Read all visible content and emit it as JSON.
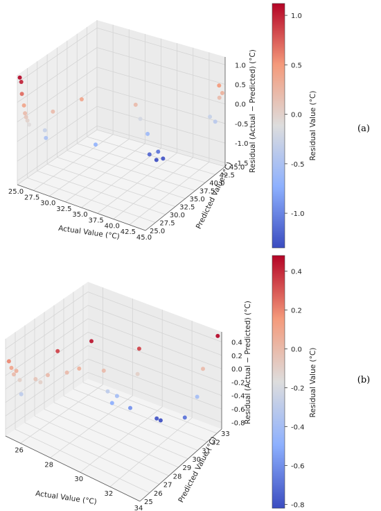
{
  "panels": [
    {
      "label": "(a)",
      "chart_data": {
        "type": "scatter",
        "projection": "3d",
        "xlabel": "Actual Value (°C)",
        "ylabel": "Predicted Value (°C)",
        "zlabel": "Residual (Actual − Predicted) (°C)",
        "x_ticks": [
          "25.0",
          "27.5",
          "30.0",
          "32.5",
          "35.0",
          "37.5",
          "40.0",
          "42.5",
          "45.0"
        ],
        "y_ticks": [
          "25.0",
          "27.5",
          "30.0",
          "32.5",
          "35.0",
          "37.5",
          "40.0",
          "42.5",
          "45.0"
        ],
        "z_ticks": [
          "-1.5",
          "-1.0",
          "-0.5",
          "0.0",
          "0.5",
          "1.0"
        ],
        "xlim": [
          25,
          45
        ],
        "ylim": [
          25,
          45
        ],
        "zlim": [
          -1.6,
          1.2
        ],
        "colorbar": {
          "label": "Residual Value (°C)",
          "colormap": "coolwarm",
          "range": [
            -1.35,
            1.12
          ],
          "ticks": [
            "1.0",
            "0.5",
            "0.0",
            "-0.5",
            "-1.0"
          ],
          "tick_values": [
            1.0,
            0.5,
            0.0,
            -0.5,
            -1.0
          ]
        },
        "points": [
          {
            "x": 25.2,
            "y": 25.3,
            "z": 1.12
          },
          {
            "x": 25.3,
            "y": 25.5,
            "z": 1.0
          },
          {
            "x": 25.4,
            "y": 25.5,
            "z": 0.7
          },
          {
            "x": 25.6,
            "y": 25.7,
            "z": 0.4
          },
          {
            "x": 25.7,
            "y": 25.8,
            "z": 0.2
          },
          {
            "x": 25.8,
            "y": 25.9,
            "z": 0.1
          },
          {
            "x": 25.9,
            "y": 26.1,
            "z": 0.0
          },
          {
            "x": 26.1,
            "y": 26.2,
            "z": -0.1
          },
          {
            "x": 27.5,
            "y": 27.9,
            "z": -0.3
          },
          {
            "x": 27.6,
            "y": 28.0,
            "z": -0.5
          },
          {
            "x": 28.5,
            "y": 28.3,
            "z": 0.2
          },
          {
            "x": 31.0,
            "y": 31.5,
            "z": 0.4
          },
          {
            "x": 32.8,
            "y": 32.1,
            "z": -0.7
          },
          {
            "x": 36.5,
            "y": 36.2,
            "z": 0.2
          },
          {
            "x": 36.8,
            "y": 36.9,
            "z": -0.2
          },
          {
            "x": 37.5,
            "y": 37.6,
            "z": -0.6
          },
          {
            "x": 37.3,
            "y": 38.4,
            "z": -1.2
          },
          {
            "x": 38.0,
            "y": 39.0,
            "z": -1.35
          },
          {
            "x": 38.4,
            "y": 38.8,
            "z": -1.1
          },
          {
            "x": 38.8,
            "y": 39.4,
            "z": -1.3
          },
          {
            "x": 43.5,
            "y": 43.6,
            "z": -0.3
          },
          {
            "x": 44.2,
            "y": 43.8,
            "z": -0.4
          },
          {
            "x": 44.5,
            "y": 44.3,
            "z": 0.5
          },
          {
            "x": 44.6,
            "y": 44.2,
            "z": 0.2
          },
          {
            "x": 44.8,
            "y": 44.6,
            "z": 0.3
          }
        ]
      }
    },
    {
      "label": "(b)",
      "chart_data": {
        "type": "scatter",
        "projection": "3d",
        "xlabel": "Actual Value (°C)",
        "ylabel": "Predicted Value (°C)",
        "zlabel": "Residual (Actual − Predicted) (°C)",
        "x_ticks": [
          "26",
          "28",
          "30",
          "32",
          "34"
        ],
        "y_ticks": [
          "25",
          "26",
          "27",
          "28",
          "29",
          "30",
          "31",
          "32",
          "33"
        ],
        "z_ticks": [
          "-0.8",
          "-0.6",
          "-0.4",
          "-0.2",
          "0.0",
          "0.2",
          "0.4"
        ],
        "xlim": [
          25,
          34
        ],
        "ylim": [
          25,
          33.5
        ],
        "zlim": [
          -0.9,
          0.55
        ],
        "colorbar": {
          "label": "Residual Value (°C)",
          "colormap": "coolwarm",
          "range": [
            -0.82,
            0.48
          ],
          "ticks": [
            "0.4",
            "0.2",
            "0.0",
            "-0.2",
            "-0.4",
            "-0.6",
            "-0.8"
          ],
          "tick_values": [
            0.4,
            0.2,
            0.0,
            -0.2,
            -0.4,
            -0.6,
            -0.8
          ]
        },
        "points": [
          {
            "x": 25.1,
            "y": 25.2,
            "z": 0.2
          },
          {
            "x": 25.2,
            "y": 25.3,
            "z": 0.1
          },
          {
            "x": 25.3,
            "y": 25.4,
            "z": 0.0
          },
          {
            "x": 25.4,
            "y": 25.5,
            "z": 0.05
          },
          {
            "x": 25.5,
            "y": 25.7,
            "z": -0.1
          },
          {
            "x": 25.6,
            "y": 25.7,
            "z": -0.3
          },
          {
            "x": 26.3,
            "y": 26.1,
            "z": -0.05
          },
          {
            "x": 26.5,
            "y": 26.3,
            "z": -0.1
          },
          {
            "x": 26.8,
            "y": 26.6,
            "z": 0.0
          },
          {
            "x": 27.2,
            "y": 27.0,
            "z": 0.35
          },
          {
            "x": 27.5,
            "y": 27.5,
            "z": 0.0
          },
          {
            "x": 28.0,
            "y": 28.0,
            "z": 0.05
          },
          {
            "x": 28.5,
            "y": 28.5,
            "z": 0.45
          },
          {
            "x": 29.0,
            "y": 29.0,
            "z": 0.0
          },
          {
            "x": 29.2,
            "y": 29.1,
            "z": -0.3
          },
          {
            "x": 29.3,
            "y": 29.4,
            "z": -0.5
          },
          {
            "x": 29.5,
            "y": 29.6,
            "z": -0.4
          },
          {
            "x": 30.0,
            "y": 30.2,
            "z": -0.6
          },
          {
            "x": 30.3,
            "y": 30.5,
            "z": -0.1
          },
          {
            "x": 30.6,
            "y": 30.2,
            "z": 0.35
          },
          {
            "x": 31.0,
            "y": 31.4,
            "z": -0.8
          },
          {
            "x": 31.2,
            "y": 31.5,
            "z": -0.82
          },
          {
            "x": 32.5,
            "y": 32.0,
            "z": -0.7
          },
          {
            "x": 33.0,
            "y": 32.5,
            "z": -0.4
          },
          {
            "x": 33.2,
            "y": 32.8,
            "z": 0.0
          },
          {
            "x": 33.8,
            "y": 33.4,
            "z": 0.48
          }
        ]
      }
    }
  ]
}
